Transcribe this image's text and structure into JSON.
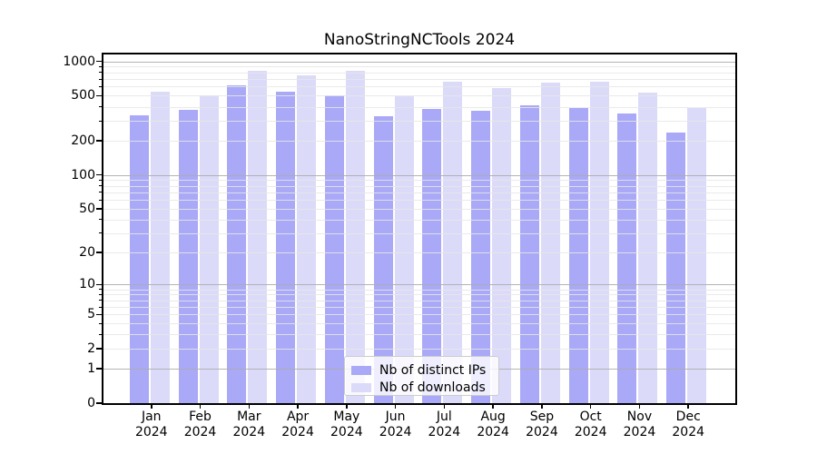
{
  "title": "NanoStringNCTools 2024",
  "chart_data": {
    "type": "bar",
    "title": "NanoStringNCTools 2024",
    "categories": [
      "Jan",
      "Feb",
      "Mar",
      "Apr",
      "May",
      "Jun",
      "Jul",
      "Aug",
      "Sep",
      "Oct",
      "Nov",
      "Dec"
    ],
    "x_tick_year_line": "2024",
    "series": [
      {
        "name": "Nb of distinct IPs",
        "color": "#a9a9f7",
        "values": [
          334,
          376,
          612,
          540,
          507,
          331,
          383,
          371,
          413,
          389,
          346,
          236
        ]
      },
      {
        "name": "Nb of downloads",
        "color": "#dbdbf9",
        "values": [
          542,
          508,
          830,
          759,
          830,
          494,
          664,
          580,
          652,
          664,
          529,
          386
        ]
      }
    ],
    "y_scale": "log1p",
    "y_tick_labels": [
      "1000",
      "500",
      "200",
      "100",
      "50",
      "20",
      "10",
      "5",
      "2",
      "1",
      "0"
    ],
    "y_tick_values": [
      1000,
      500,
      200,
      100,
      50,
      20,
      10,
      5,
      2,
      1,
      0
    ],
    "ylim": [
      0,
      1175
    ],
    "grid": true,
    "legend_position": "lower-center"
  }
}
